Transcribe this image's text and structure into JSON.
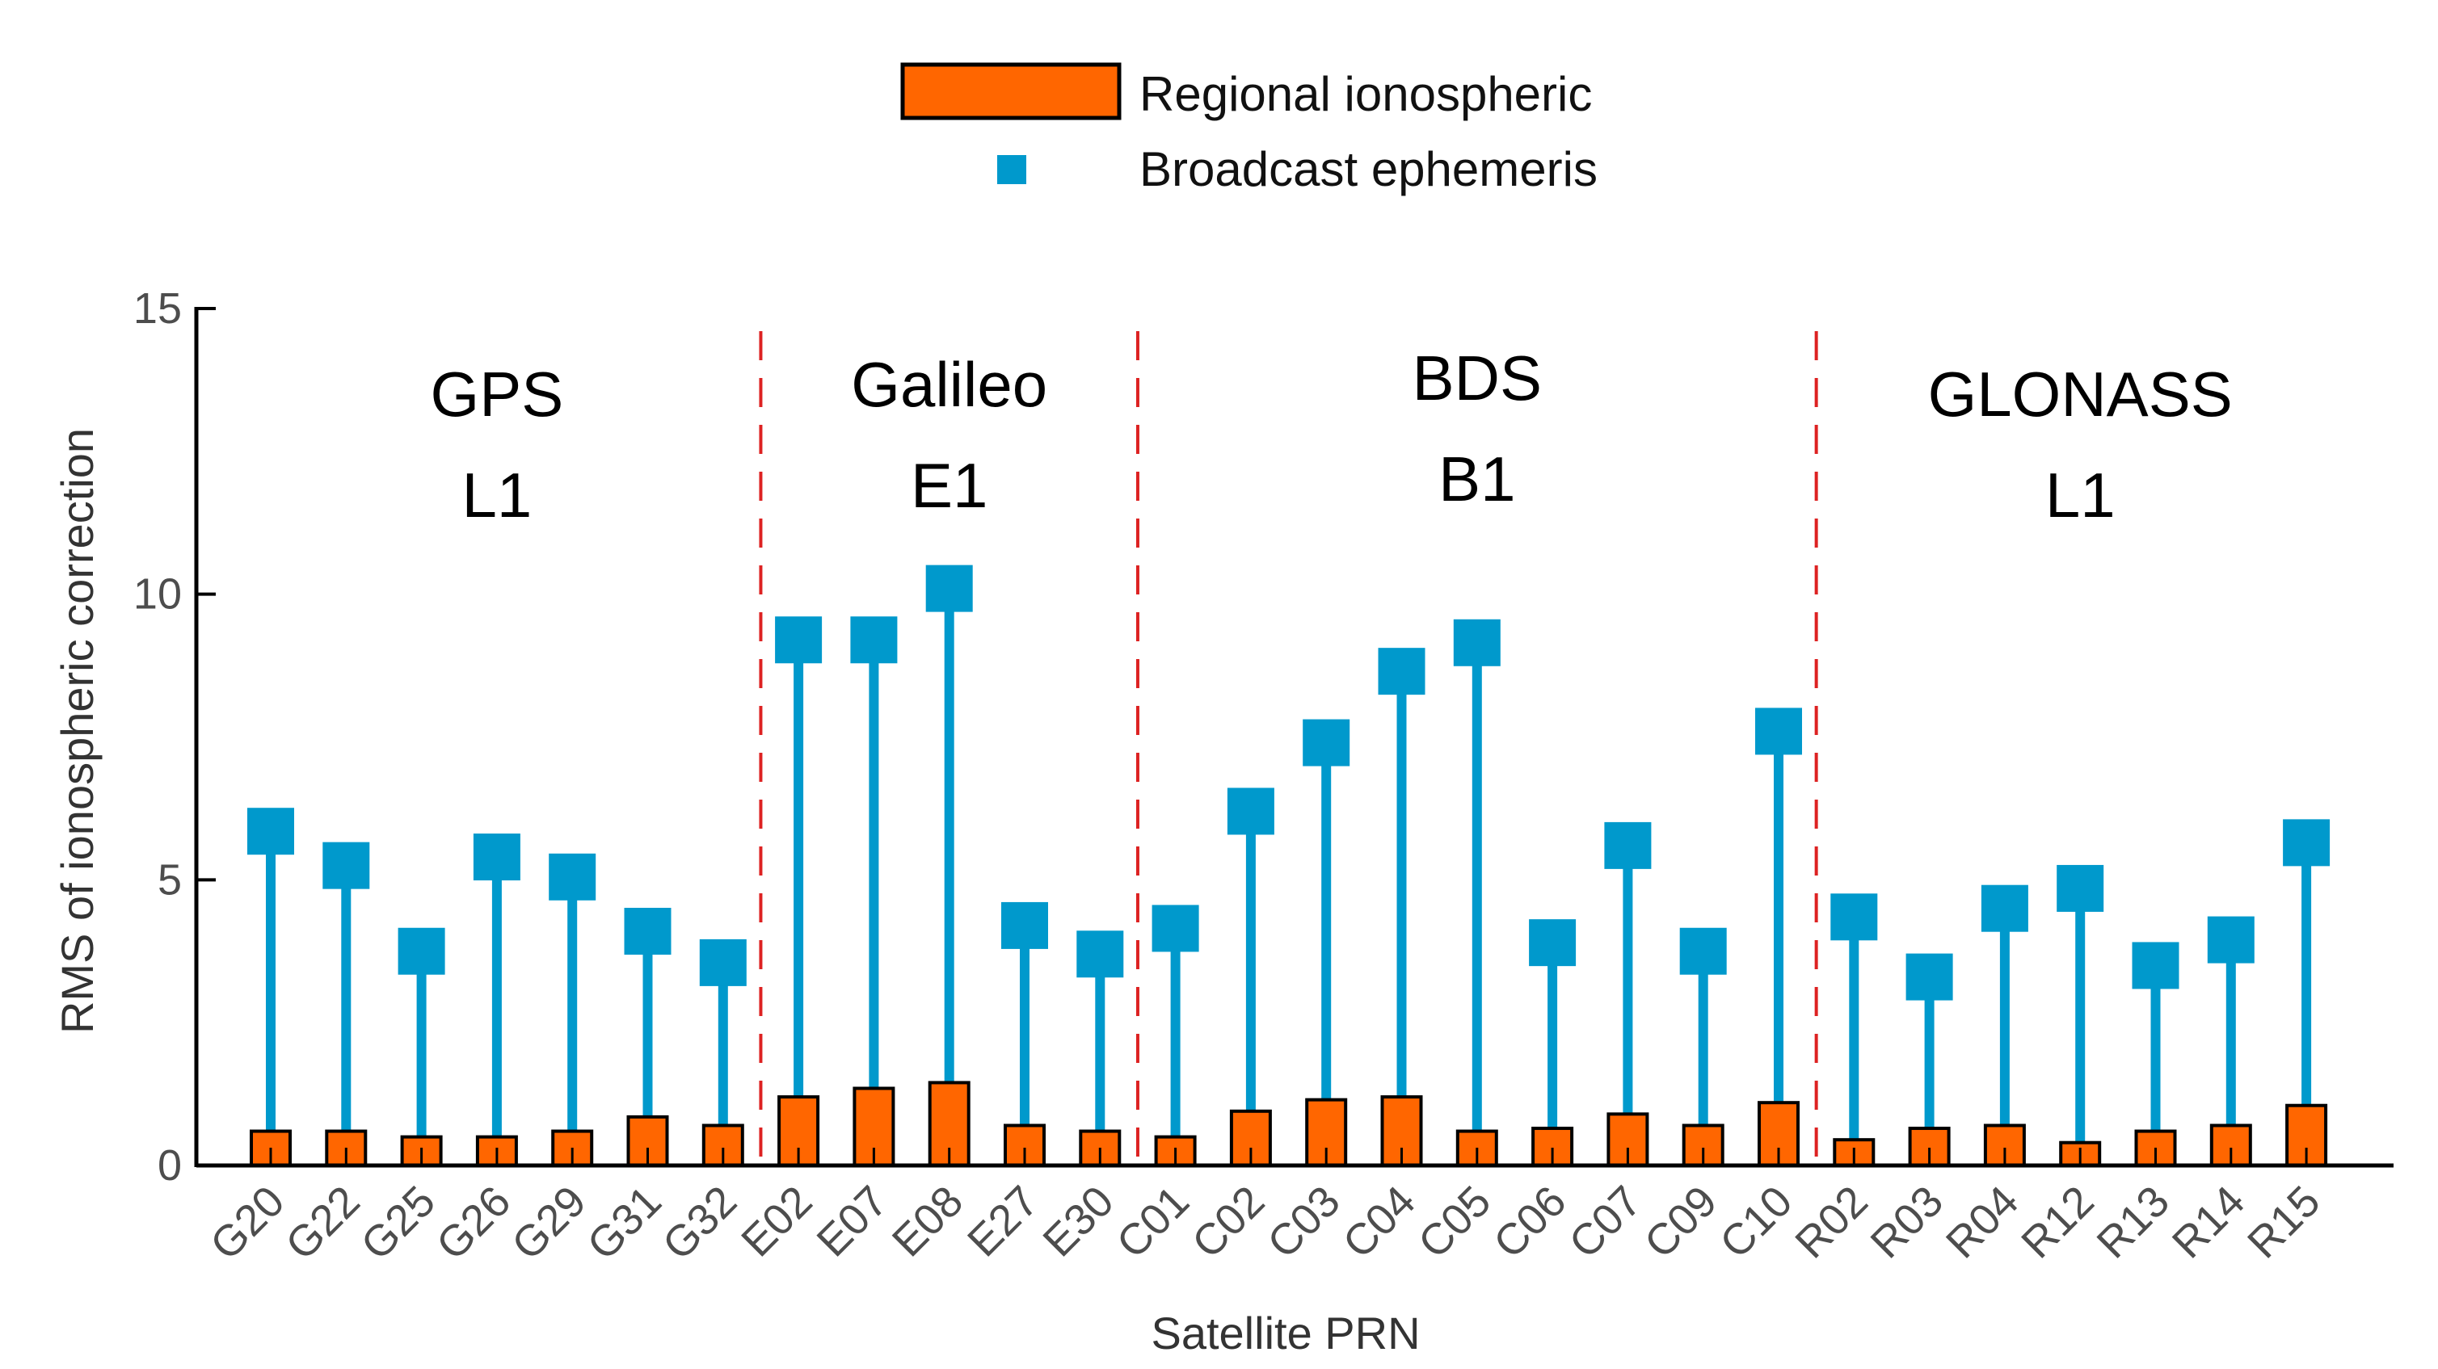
{
  "chart_data": {
    "type": "bar",
    "xlabel": "Satellite PRN",
    "ylabel": "RMS of ionospheric correction",
    "ylim": [
      0,
      15
    ],
    "yticks": [
      0,
      5,
      10,
      15
    ],
    "categories": [
      "G20",
      "G22",
      "G25",
      "G26",
      "G29",
      "G31",
      "G32",
      "E02",
      "E07",
      "E08",
      "E27",
      "E30",
      "C01",
      "C02",
      "C03",
      "C04",
      "C05",
      "C06",
      "C07",
      "C09",
      "C10",
      "R02",
      "R03",
      "R04",
      "R12",
      "R13",
      "R14",
      "R15"
    ],
    "series": [
      {
        "name": "Regional ionospheric",
        "kind": "bar",
        "color": "#FF6600",
        "values": [
          0.6,
          0.6,
          0.5,
          0.5,
          0.6,
          0.85,
          0.7,
          1.2,
          1.35,
          1.45,
          0.7,
          0.6,
          0.5,
          0.95,
          1.15,
          1.2,
          0.6,
          0.65,
          0.9,
          0.7,
          1.1,
          0.45,
          0.65,
          0.7,
          0.4,
          0.6,
          0.7,
          1.05
        ]
      },
      {
        "name": "Broadcast ephemeris",
        "kind": "stem-square",
        "color": "#0099CC",
        "values": [
          5.85,
          5.25,
          3.75,
          5.4,
          5.05,
          4.1,
          3.55,
          9.2,
          9.2,
          10.1,
          4.2,
          3.7,
          4.15,
          6.2,
          7.4,
          8.65,
          9.15,
          3.9,
          5.6,
          3.75,
          7.6,
          4.35,
          3.3,
          4.5,
          4.85,
          3.5,
          3.95,
          5.65
        ]
      }
    ],
    "groups": [
      {
        "name": "GPS",
        "band": "L1",
        "start": 0,
        "end": 6
      },
      {
        "name": "Galileo",
        "band": "E1",
        "start": 7,
        "end": 11
      },
      {
        "name": "BDS",
        "band": "B1",
        "start": 12,
        "end": 20
      },
      {
        "name": "GLONASS",
        "band": "L1",
        "start": 21,
        "end": 27
      }
    ],
    "separator_color": "#DD2222",
    "legend_position": "top-center"
  }
}
